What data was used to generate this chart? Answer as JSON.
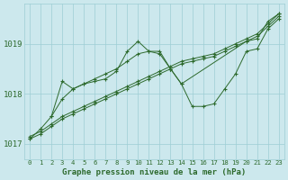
{
  "title": "Graphe pression niveau de la mer (hPa)",
  "background_color": "#cce8ed",
  "grid_color": "#9ecdd4",
  "line_color": "#2d6a2d",
  "xlim": [
    -0.5,
    23.5
  ],
  "ylim": [
    1016.7,
    1019.8
  ],
  "yticks": [
    1017,
    1018,
    1019
  ],
  "xtick_labels": [
    "0",
    "1",
    "2",
    "3",
    "4",
    "5",
    "6",
    "7",
    "8",
    "9",
    "10",
    "11",
    "12",
    "13",
    "14",
    "15",
    "16",
    "17",
    "18",
    "19",
    "20",
    "21",
    "22",
    "23"
  ],
  "series": [
    {
      "x": [
        0,
        1,
        2,
        3,
        4,
        5,
        6,
        7,
        8,
        9,
        10,
        11,
        12,
        13,
        14,
        15,
        16,
        17,
        18,
        19,
        20,
        21,
        22,
        23
      ],
      "y": [
        1017.1,
        1017.2,
        1017.35,
        1017.5,
        1017.6,
        1017.7,
        1017.8,
        1017.9,
        1018.0,
        1018.1,
        1018.2,
        1018.3,
        1018.4,
        1018.5,
        1018.6,
        1018.65,
        1018.7,
        1018.75,
        1018.85,
        1018.95,
        1019.05,
        1019.15,
        1019.35,
        1019.55
      ]
    },
    {
      "x": [
        0,
        1,
        2,
        3,
        4,
        5,
        6,
        7,
        8,
        9,
        10,
        11,
        12,
        13,
        14,
        15,
        16,
        17,
        18,
        19,
        20,
        21,
        22,
        23
      ],
      "y": [
        1017.15,
        1017.25,
        1017.4,
        1017.55,
        1017.65,
        1017.75,
        1017.85,
        1017.95,
        1018.05,
        1018.15,
        1018.25,
        1018.35,
        1018.45,
        1018.55,
        1018.65,
        1018.7,
        1018.75,
        1018.8,
        1018.9,
        1019.0,
        1019.1,
        1019.2,
        1019.4,
        1019.6
      ]
    },
    {
      "x": [
        0,
        1,
        2,
        3,
        4,
        5,
        6,
        7,
        8,
        9,
        10,
        11,
        12,
        13,
        14,
        15,
        16,
        17,
        18,
        19,
        20,
        21,
        22,
        23
      ],
      "y": [
        1017.1,
        1017.3,
        1017.55,
        1017.9,
        1018.1,
        1018.2,
        1018.3,
        1018.4,
        1018.5,
        1018.65,
        1018.8,
        1018.85,
        1018.8,
        1018.5,
        1018.2,
        1017.75,
        1017.75,
        1017.8,
        1018.1,
        1018.4,
        1018.85,
        1018.9,
        1019.3,
        1019.5
      ]
    },
    {
      "x": [
        2,
        3,
        4,
        5,
        6,
        7,
        8,
        9,
        10,
        11,
        12,
        13,
        14,
        20,
        21,
        22,
        23
      ],
      "y": [
        1017.55,
        1018.25,
        1018.1,
        1018.2,
        1018.25,
        1018.3,
        1018.45,
        1018.85,
        1019.05,
        1018.85,
        1018.85,
        1018.5,
        1018.2,
        1019.05,
        1019.1,
        1019.45,
        1019.6
      ]
    }
  ]
}
